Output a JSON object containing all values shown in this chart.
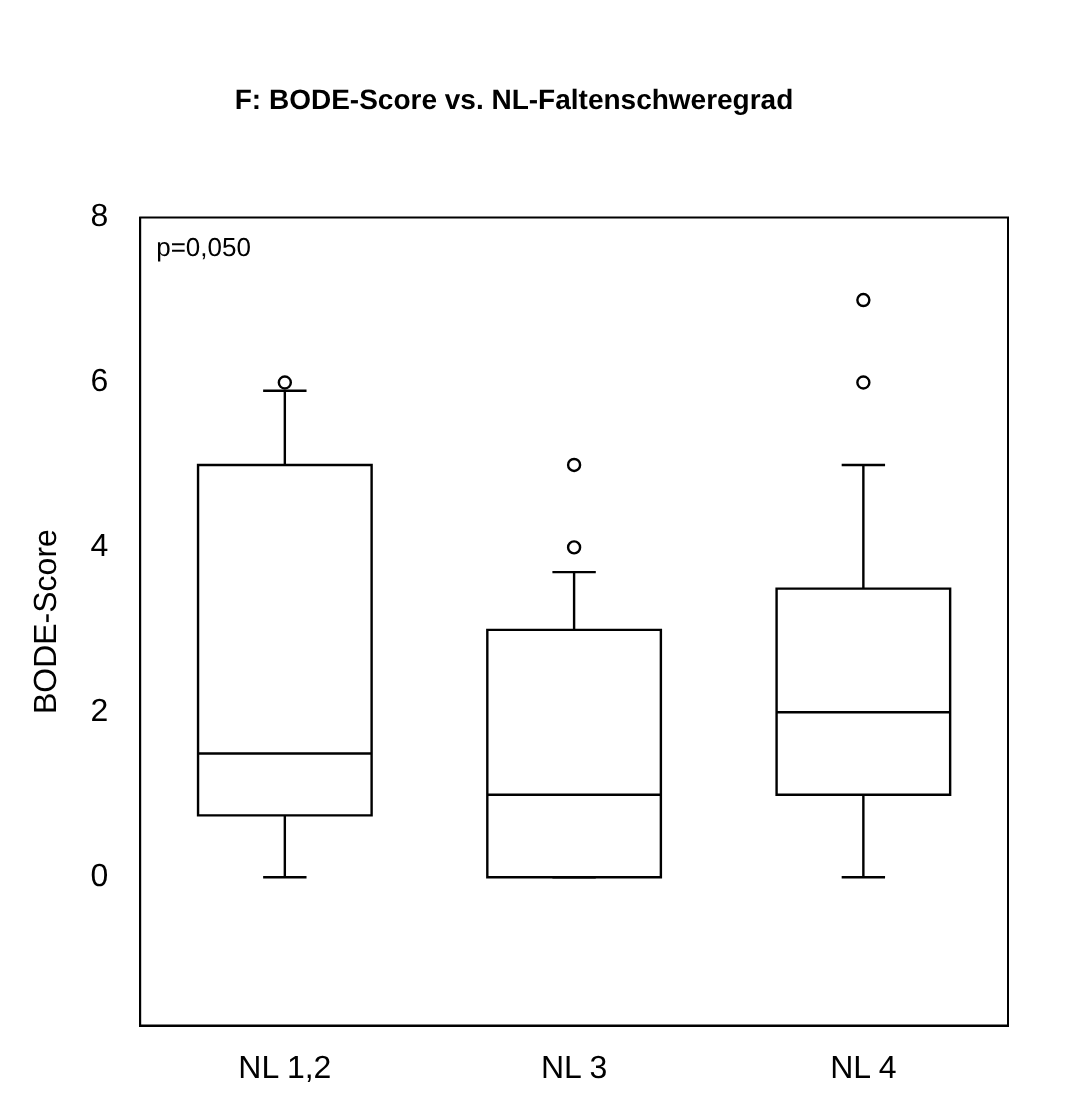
{
  "chart_data": {
    "type": "box",
    "title": "F: BODE-Score vs. NL-Faltenschweregrad",
    "ylabel": "BODE-Score",
    "categories": [
      "NL 1,2",
      "NL 3",
      "NL 4"
    ],
    "boxes": [
      {
        "low": 0,
        "q1": 0.75,
        "median": 1.5,
        "q3": 5,
        "high": 5.9,
        "outliers": [
          6
        ]
      },
      {
        "low": 0,
        "q1": 0,
        "median": 1,
        "q3": 3,
        "high": 3.7,
        "outliers": [
          4,
          5
        ]
      },
      {
        "low": 0,
        "q1": 1,
        "median": 2,
        "q3": 3.5,
        "high": 5,
        "outliers": [
          6,
          7
        ]
      }
    ],
    "ylim": [
      -1.8,
      8
    ],
    "yticks": [
      0,
      2,
      4,
      6,
      8
    ],
    "grid": false,
    "legend": false,
    "annotations": [
      "p=0,050"
    ]
  }
}
